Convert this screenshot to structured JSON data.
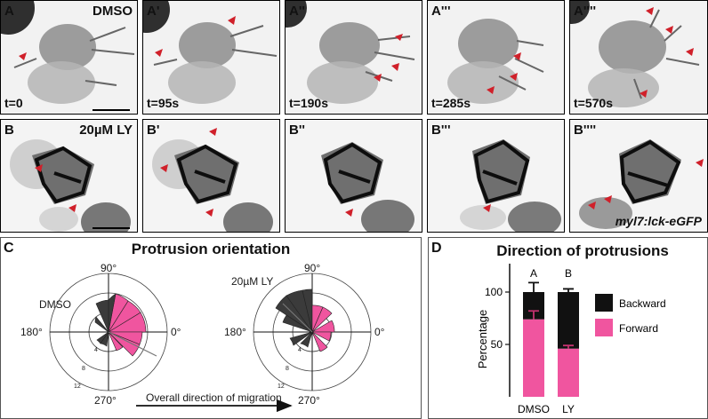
{
  "row_a": {
    "treatment": "DMSO",
    "panels": [
      {
        "letter": "A",
        "time": "t=0"
      },
      {
        "letter": "A'",
        "time": "t=95s"
      },
      {
        "letter": "A''",
        "time": "t=190s"
      },
      {
        "letter": "A'''",
        "time": "t=285s"
      },
      {
        "letter": "A''''",
        "time": "t=570s"
      }
    ]
  },
  "row_b": {
    "treatment": "20µM LY",
    "panels": [
      {
        "letter": "B"
      },
      {
        "letter": "B'"
      },
      {
        "letter": "B''"
      },
      {
        "letter": "B'''"
      },
      {
        "letter": "B''''"
      }
    ],
    "transgene": "myl7:lck-eGFP"
  },
  "panel_c": {
    "letter": "C",
    "title": "Protrusion orientation",
    "angle_labels": [
      "90°",
      "180°",
      "0°",
      "270°"
    ],
    "ring_labels": [
      "4",
      "8",
      "12"
    ],
    "plots": [
      {
        "name": "DMSO"
      },
      {
        "name": "20µM LY"
      }
    ],
    "arrow_label": "Overall direction of migration",
    "colors": {
      "forward": "#f0559f",
      "backward": "#3b3b3b"
    }
  },
  "panel_d": {
    "letter": "D",
    "title": "Direction of protrusions",
    "ylabel": "Percentage",
    "yticks": [
      "50",
      "100"
    ],
    "legend": [
      "Backward",
      "Forward"
    ],
    "significance": [
      "A",
      "B"
    ],
    "colors": {
      "backward": "#111111",
      "forward": "#f0559f"
    }
  },
  "chart_data": {
    "type": "bar",
    "categories": [
      "DMSO",
      "LY"
    ],
    "series": [
      {
        "name": "Forward",
        "values": [
          74,
          46
        ],
        "errors": [
          8,
          3
        ]
      },
      {
        "name": "Backward",
        "values": [
          26,
          54
        ],
        "errors": [
          9,
          3
        ]
      }
    ],
    "ylabel": "Percentage",
    "ylim": [
      0,
      110
    ],
    "stacked": true
  }
}
